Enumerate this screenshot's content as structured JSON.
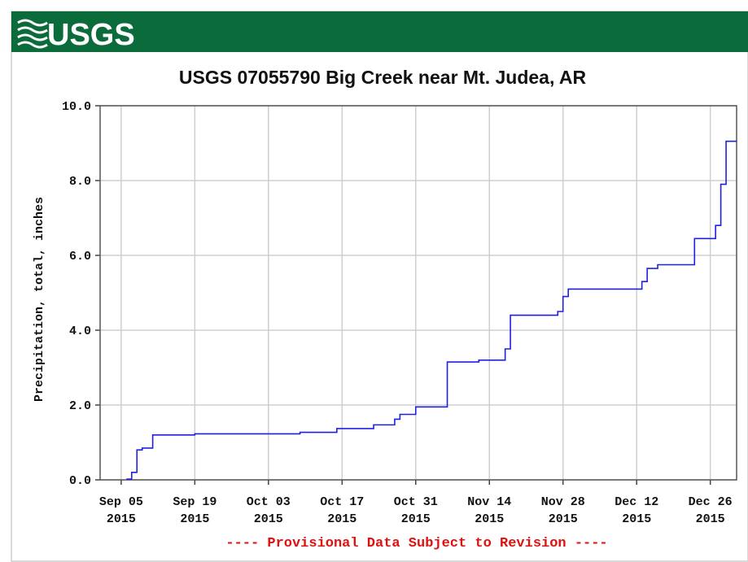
{
  "header": {
    "logo": "USGS"
  },
  "chart_data": {
    "type": "line",
    "step": "post",
    "title": "USGS 07055790 Big Creek near Mt. Judea, AR",
    "y_label": "Precipitation, total, inches",
    "footnote": "---- Provisional Data Subject to Revision ----",
    "xlim": [
      "2015-09-01",
      "2015-12-31"
    ],
    "xticks": [
      {
        "value": "2015-09-05",
        "label": "Sep 05",
        "year_label": "2015"
      },
      {
        "value": "2015-09-19",
        "label": "Sep 19",
        "year_label": "2015"
      },
      {
        "value": "2015-10-03",
        "label": "Oct 03",
        "year_label": "2015"
      },
      {
        "value": "2015-10-17",
        "label": "Oct 17",
        "year_label": "2015"
      },
      {
        "value": "2015-10-31",
        "label": "Oct 31",
        "year_label": "2015"
      },
      {
        "value": "2015-11-14",
        "label": "Nov 14",
        "year_label": "2015"
      },
      {
        "value": "2015-11-28",
        "label": "Nov 28",
        "year_label": "2015"
      },
      {
        "value": "2015-12-12",
        "label": "Dec 12",
        "year_label": "2015"
      },
      {
        "value": "2015-12-26",
        "label": "Dec 26",
        "year_label": "2015"
      }
    ],
    "ylim": [
      0,
      10
    ],
    "yticks": [
      {
        "value": 0,
        "label": "0.0"
      },
      {
        "value": 2,
        "label": "2.0"
      },
      {
        "value": 4,
        "label": "4.0"
      },
      {
        "value": 6,
        "label": "6.0"
      },
      {
        "value": 8,
        "label": "8.0"
      },
      {
        "value": 10,
        "label": "10.0"
      }
    ],
    "grid": true,
    "series": [
      {
        "color": "#2020e0",
        "x": [
          "2015-09-06",
          "2015-09-07",
          "2015-09-08",
          "2015-09-09",
          "2015-09-11",
          "2015-09-19",
          "2015-10-09",
          "2015-10-16",
          "2015-10-23",
          "2015-10-27",
          "2015-10-28",
          "2015-10-31",
          "2015-11-06",
          "2015-11-12",
          "2015-11-17",
          "2015-11-18",
          "2015-11-27",
          "2015-11-28",
          "2015-11-29",
          "2015-12-13",
          "2015-12-14",
          "2015-12-16",
          "2015-12-23",
          "2015-12-27",
          "2015-12-28",
          "2015-12-29"
        ],
        "values": [
          0.02,
          0.2,
          0.8,
          0.85,
          1.2,
          1.23,
          1.27,
          1.37,
          1.47,
          1.62,
          1.75,
          1.95,
          3.15,
          3.2,
          3.5,
          4.4,
          4.5,
          4.9,
          5.1,
          5.3,
          5.65,
          5.75,
          6.45,
          6.8,
          7.9,
          9.05
        ]
      }
    ]
  }
}
